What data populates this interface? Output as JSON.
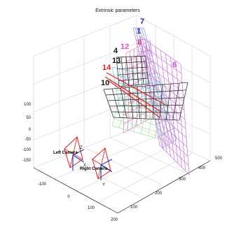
{
  "chart_data": {
    "type": "3d-extrinsic-parameters",
    "title": "Extrinsic parameters",
    "z_ticks": [
      "100",
      "50",
      "0",
      "-50",
      "-100",
      "-150"
    ],
    "x_ticks": [
      "-100",
      "0",
      "100",
      "200"
    ],
    "y_ticks": [
      "100",
      "200",
      "300",
      "400",
      "500"
    ],
    "cameras": [
      {
        "label": "Left Camera",
        "color": "#e02020"
      },
      {
        "label": "Right Camera",
        "color": "#e02020"
      }
    ],
    "camera_axis_labels": [
      "Z",
      "X",
      "Y"
    ],
    "planes": [
      {
        "label": "7",
        "color": "#1a1ab0"
      },
      {
        "label": "1",
        "color": "#2a2ad0"
      },
      {
        "label": "12",
        "color": "#e04fd0"
      },
      {
        "label": "8",
        "color": "#d03070"
      },
      {
        "label": "6",
        "color": "#c050e0"
      },
      {
        "label": "4",
        "color": "#111111"
      },
      {
        "label": "13",
        "color": "#111111"
      },
      {
        "label": "14",
        "color": "#e02020"
      },
      {
        "label": "10",
        "color": "#111111"
      }
    ]
  }
}
